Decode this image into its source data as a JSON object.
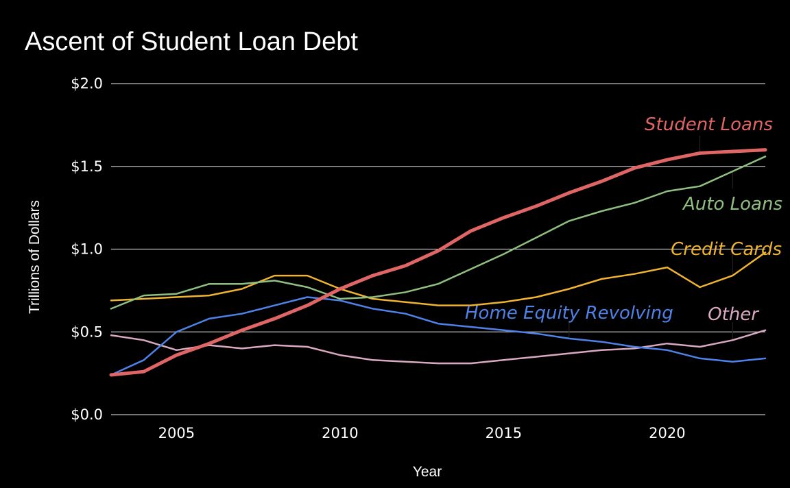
{
  "chart_data": {
    "type": "line",
    "title": "Ascent of Student Loan Debt",
    "xlabel": "Year",
    "ylabel": "Trillions of Dollars",
    "xlim": [
      2003,
      2023
    ],
    "ylim": [
      0,
      2.0
    ],
    "x_ticks": [
      2005,
      2010,
      2015,
      2020
    ],
    "y_ticks": [
      {
        "value": 0.0,
        "label": "$0.0"
      },
      {
        "value": 0.5,
        "label": "$0.5"
      },
      {
        "value": 1.0,
        "label": "$1.0"
      },
      {
        "value": 1.5,
        "label": "$1.5"
      },
      {
        "value": 2.0,
        "label": "$2.0"
      }
    ],
    "grid": true,
    "legend": "direct labels",
    "background": "#000000",
    "x": [
      2003,
      2004,
      2005,
      2006,
      2007,
      2008,
      2009,
      2010,
      2011,
      2012,
      2013,
      2014,
      2015,
      2016,
      2017,
      2018,
      2019,
      2020,
      2021,
      2022,
      2023
    ],
    "series": [
      {
        "name": "Other",
        "color": "#d8a9c0",
        "width": 2.5,
        "values": [
          0.48,
          0.45,
          0.39,
          0.42,
          0.4,
          0.42,
          0.41,
          0.36,
          0.33,
          0.32,
          0.31,
          0.31,
          0.33,
          0.35,
          0.37,
          0.39,
          0.4,
          0.43,
          0.41,
          0.45,
          0.51
        ]
      },
      {
        "name": "Home Equity Revolving",
        "color": "#4f82e8",
        "width": 2.5,
        "values": [
          0.24,
          0.33,
          0.5,
          0.58,
          0.61,
          0.66,
          0.71,
          0.69,
          0.64,
          0.61,
          0.55,
          0.53,
          0.51,
          0.49,
          0.46,
          0.44,
          0.41,
          0.39,
          0.34,
          0.32,
          0.34
        ]
      },
      {
        "name": "Credit Cards",
        "color": "#f0b430",
        "width": 2.5,
        "values": [
          0.69,
          0.7,
          0.71,
          0.72,
          0.76,
          0.84,
          0.84,
          0.76,
          0.7,
          0.68,
          0.66,
          0.66,
          0.68,
          0.71,
          0.76,
          0.82,
          0.85,
          0.89,
          0.77,
          0.84,
          0.98
        ]
      },
      {
        "name": "Auto Loans",
        "color": "#8fc07f",
        "width": 2.5,
        "values": [
          0.64,
          0.72,
          0.73,
          0.79,
          0.79,
          0.81,
          0.77,
          0.7,
          0.71,
          0.74,
          0.79,
          0.88,
          0.97,
          1.07,
          1.17,
          1.23,
          1.28,
          1.35,
          1.38,
          1.47,
          1.56
        ]
      },
      {
        "name": "Student Loans",
        "color": "#e06666",
        "width": 5,
        "values": [
          0.24,
          0.26,
          0.36,
          0.43,
          0.51,
          0.58,
          0.66,
          0.76,
          0.84,
          0.9,
          0.99,
          1.11,
          1.19,
          1.26,
          1.34,
          1.41,
          1.49,
          1.54,
          1.58,
          1.59,
          1.6
        ]
      }
    ],
    "annotations": [
      {
        "text": "Student Loans",
        "series": "Student Loans",
        "anchor_year": 2021,
        "color": "#e06666"
      },
      {
        "text": "Auto Loans",
        "series": "Auto Loans",
        "anchor_year": 2022,
        "color": "#8fc07f"
      },
      {
        "text": "Credit Cards",
        "series": "Credit Cards",
        "anchor_year": 2022,
        "color": "#f0b430"
      },
      {
        "text": "Home Equity Revolving",
        "series": "Home Equity Revolving",
        "anchor_year": 2017,
        "color": "#4f82e8"
      },
      {
        "text": "Other",
        "series": "Other",
        "anchor_year": 2022,
        "color": "#d8a9c0"
      }
    ]
  }
}
